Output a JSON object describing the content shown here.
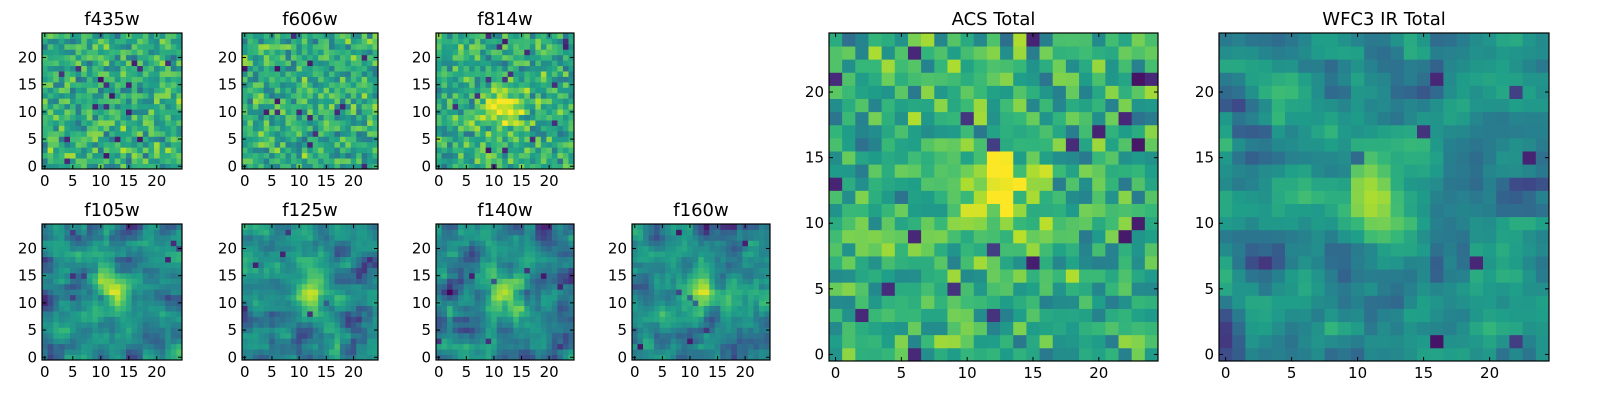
{
  "chart_data": [
    {
      "type": "heatmap",
      "title": "f435w",
      "size": 25,
      "xticks": [
        0,
        5,
        10,
        15,
        20
      ],
      "yticks": [
        0,
        5,
        10,
        15,
        20
      ],
      "xlim": [
        -0.5,
        24.5
      ],
      "ylim": [
        -0.5,
        24.5
      ],
      "colormap": "viridis",
      "peak_center": null,
      "smoothness": 0,
      "seed": 11
    },
    {
      "type": "heatmap",
      "title": "f606w",
      "size": 25,
      "xticks": [
        0,
        5,
        10,
        15,
        20
      ],
      "yticks": [
        0,
        5,
        10,
        15,
        20
      ],
      "xlim": [
        -0.5,
        24.5
      ],
      "ylim": [
        -0.5,
        24.5
      ],
      "colormap": "viridis",
      "peak_center": null,
      "smoothness": 0,
      "seed": 23
    },
    {
      "type": "heatmap",
      "title": "f814w",
      "size": 25,
      "xticks": [
        0,
        5,
        10,
        15,
        20
      ],
      "yticks": [
        0,
        5,
        10,
        15,
        20
      ],
      "xlim": [
        -0.5,
        24.5
      ],
      "ylim": [
        -0.5,
        24.5
      ],
      "colormap": "viridis",
      "peak_center": [
        12,
        11
      ],
      "smoothness": 0,
      "seed": 37
    },
    {
      "type": "heatmap",
      "title": "f105w",
      "size": 25,
      "xticks": [
        0,
        5,
        10,
        15,
        20
      ],
      "yticks": [
        0,
        5,
        10,
        15,
        20
      ],
      "xlim": [
        -0.5,
        24.5
      ],
      "ylim": [
        -0.5,
        24.5
      ],
      "colormap": "viridis",
      "peak_center": [
        12,
        12
      ],
      "smoothness": 1,
      "seed": 41
    },
    {
      "type": "heatmap",
      "title": "f125w",
      "size": 25,
      "xticks": [
        0,
        5,
        10,
        15,
        20
      ],
      "yticks": [
        0,
        5,
        10,
        15,
        20
      ],
      "xlim": [
        -0.5,
        24.5
      ],
      "ylim": [
        -0.5,
        24.5
      ],
      "colormap": "viridis",
      "peak_center": [
        12,
        12
      ],
      "smoothness": 1,
      "seed": 53
    },
    {
      "type": "heatmap",
      "title": "f140w",
      "size": 25,
      "xticks": [
        0,
        5,
        10,
        15,
        20
      ],
      "yticks": [
        0,
        5,
        10,
        15,
        20
      ],
      "xlim": [
        -0.5,
        24.5
      ],
      "ylim": [
        -0.5,
        24.5
      ],
      "colormap": "viridis",
      "peak_center": [
        12,
        12
      ],
      "smoothness": 1,
      "seed": 67
    },
    {
      "type": "heatmap",
      "title": "f160w",
      "size": 25,
      "xticks": [
        0,
        5,
        10,
        15,
        20
      ],
      "yticks": [
        0,
        5,
        10,
        15,
        20
      ],
      "xlim": [
        -0.5,
        24.5
      ],
      "ylim": [
        -0.5,
        24.5
      ],
      "colormap": "viridis",
      "peak_center": [
        12,
        12
      ],
      "smoothness": 1,
      "seed": 79
    },
    {
      "type": "heatmap",
      "title": "ACS Total",
      "size": 25,
      "xticks": [
        0,
        5,
        10,
        15,
        20
      ],
      "yticks": [
        0,
        5,
        10,
        15,
        20
      ],
      "xlim": [
        -0.5,
        24.5
      ],
      "ylim": [
        -0.5,
        24.5
      ],
      "colormap": "viridis",
      "peak_center": [
        12,
        12
      ],
      "smoothness": 0,
      "seed": 89
    },
    {
      "type": "heatmap",
      "title": "WFC3 IR Total",
      "size": 25,
      "xticks": [
        0,
        5,
        10,
        15,
        20
      ],
      "yticks": [
        0,
        5,
        10,
        15,
        20
      ],
      "xlim": [
        -0.5,
        24.5
      ],
      "ylim": [
        -0.5,
        24.5
      ],
      "colormap": "viridis",
      "peak_center": [
        11,
        12
      ],
      "smoothness": 1,
      "seed": 97
    }
  ]
}
